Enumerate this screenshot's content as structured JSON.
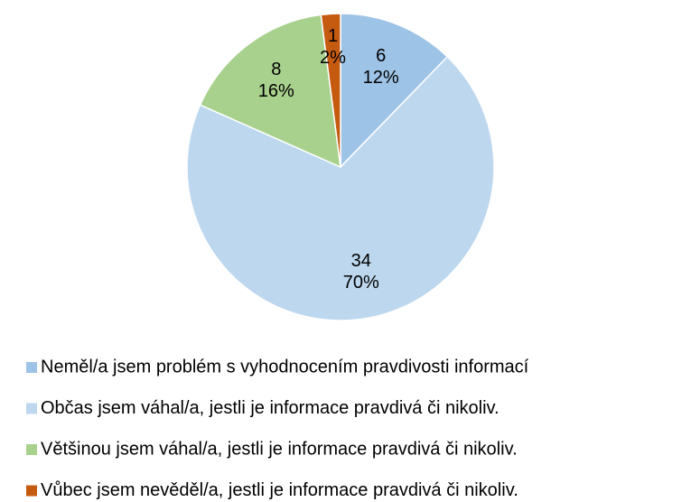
{
  "chart_data": {
    "type": "pie",
    "categories": [
      "Neměl/a jsem problém s vyhodnocením pravdivosti informací",
      "Občas jsem váhal/a, jestli je informace pravdivá či nikoliv.",
      "Většinou jsem váhal/a, jestli je informace pravdivá či nikoliv.",
      "Vůbec jsem nevěděl/a, jestli je informace pravdivá či nikoliv."
    ],
    "values": [
      6,
      34,
      8,
      1
    ],
    "percent_labels": [
      "12%",
      "70%",
      "16%",
      "2%"
    ],
    "colors": [
      "#9dc3e6",
      "#bdd7ee",
      "#a9d18e",
      "#c55a11"
    ]
  }
}
